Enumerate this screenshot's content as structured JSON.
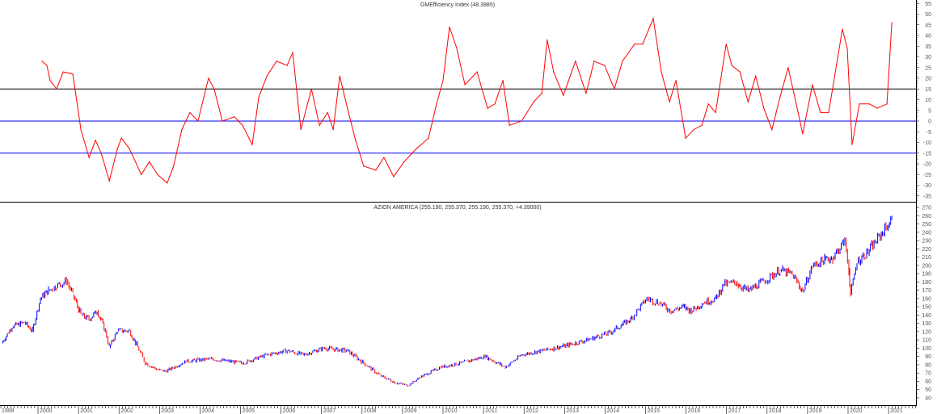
{
  "chart_data": [
    {
      "type": "line",
      "title": "GMEfficiency Index (48.3985)",
      "color": "#ff0000",
      "ylim": [
        -38,
        57
      ],
      "yticks": [
        55,
        50,
        45,
        40,
        35,
        30,
        25,
        20,
        15,
        10,
        5,
        0,
        -5,
        -10,
        -15,
        -20,
        -25,
        -30,
        -35
      ],
      "reference_lines": [
        {
          "value": 15,
          "color": "#000000"
        },
        {
          "value": 0,
          "color": "#0000ff"
        },
        {
          "value": -15,
          "color": "#0000ff"
        }
      ],
      "points": [
        [
          2000.1,
          28
        ],
        [
          2000.22,
          26
        ],
        [
          2000.3,
          19
        ],
        [
          2000.46,
          15
        ],
        [
          2000.62,
          23
        ],
        [
          2000.86,
          22
        ],
        [
          2001.06,
          -4
        ],
        [
          2001.26,
          -17
        ],
        [
          2001.42,
          -9
        ],
        [
          2001.56,
          -15
        ],
        [
          2001.76,
          -28
        ],
        [
          2001.96,
          -13
        ],
        [
          2002.06,
          -8
        ],
        [
          2002.26,
          -13
        ],
        [
          2002.55,
          -25
        ],
        [
          2002.75,
          -19
        ],
        [
          2002.95,
          -25
        ],
        [
          2003.19,
          -29
        ],
        [
          2003.35,
          -21
        ],
        [
          2003.55,
          -4
        ],
        [
          2003.75,
          4
        ],
        [
          2003.95,
          0
        ],
        [
          2004.21,
          20
        ],
        [
          2004.35,
          15
        ],
        [
          2004.55,
          0
        ],
        [
          2004.85,
          2
        ],
        [
          2005.05,
          -2
        ],
        [
          2005.29,
          -11
        ],
        [
          2005.45,
          11
        ],
        [
          2005.65,
          21
        ],
        [
          2005.89,
          28
        ],
        [
          2006.15,
          26
        ],
        [
          2006.29,
          32
        ],
        [
          2006.49,
          -4
        ],
        [
          2006.75,
          15
        ],
        [
          2006.95,
          -2
        ],
        [
          2007.15,
          4
        ],
        [
          2007.29,
          -4
        ],
        [
          2007.45,
          21
        ],
        [
          2007.64,
          6
        ],
        [
          2007.84,
          -9
        ],
        [
          2008.04,
          -21
        ],
        [
          2008.34,
          -23
        ],
        [
          2008.54,
          -17
        ],
        [
          2008.78,
          -26
        ],
        [
          2009.04,
          -19
        ],
        [
          2009.34,
          -13
        ],
        [
          2009.64,
          -8
        ],
        [
          2009.84,
          8
        ],
        [
          2010.0,
          19
        ],
        [
          2010.16,
          44
        ],
        [
          2010.34,
          34
        ],
        [
          2010.54,
          17
        ],
        [
          2010.84,
          23
        ],
        [
          2011.1,
          6
        ],
        [
          2011.28,
          8
        ],
        [
          2011.48,
          19
        ],
        [
          2011.64,
          -2
        ],
        [
          2011.94,
          0
        ],
        [
          2012.24,
          9
        ],
        [
          2012.44,
          13
        ],
        [
          2012.57,
          38
        ],
        [
          2012.73,
          23
        ],
        [
          2012.97,
          12
        ],
        [
          2013.27,
          28
        ],
        [
          2013.53,
          13
        ],
        [
          2013.73,
          28
        ],
        [
          2013.99,
          26
        ],
        [
          2014.23,
          15
        ],
        [
          2014.43,
          28
        ],
        [
          2014.73,
          36
        ],
        [
          2014.93,
          36
        ],
        [
          2015.19,
          48
        ],
        [
          2015.39,
          23
        ],
        [
          2015.59,
          9
        ],
        [
          2015.75,
          19
        ],
        [
          2015.99,
          -8
        ],
        [
          2016.19,
          -4
        ],
        [
          2016.39,
          -2
        ],
        [
          2016.55,
          8
        ],
        [
          2016.73,
          4
        ],
        [
          2016.99,
          36
        ],
        [
          2017.13,
          26
        ],
        [
          2017.33,
          23
        ],
        [
          2017.53,
          9
        ],
        [
          2017.72,
          21
        ],
        [
          2017.92,
          6
        ],
        [
          2018.12,
          -4
        ],
        [
          2018.32,
          11
        ],
        [
          2018.52,
          25
        ],
        [
          2018.72,
          8
        ],
        [
          2018.88,
          -6
        ],
        [
          2019.12,
          17
        ],
        [
          2019.32,
          4
        ],
        [
          2019.52,
          4
        ],
        [
          2019.86,
          43
        ],
        [
          2019.98,
          34
        ],
        [
          2020.1,
          -11
        ],
        [
          2020.28,
          8
        ],
        [
          2020.52,
          8
        ],
        [
          2020.72,
          6
        ],
        [
          2020.96,
          8
        ],
        [
          2021.08,
          46
        ]
      ]
    },
    {
      "type": "bar",
      "title": "AZION AMERICA (255.190, 255.370, 255.190, 255.370, +4.39000)",
      "up_color": "#0000ff",
      "down_color": "#ff0000",
      "ylim": [
        36,
        272
      ],
      "yticks": [
        270,
        260,
        250,
        240,
        230,
        220,
        210,
        200,
        190,
        180,
        170,
        160,
        150,
        140,
        130,
        120,
        110,
        100,
        90,
        80,
        70,
        60,
        50,
        40
      ],
      "points": [
        [
          1999.1,
          106
        ],
        [
          1999.36,
          126
        ],
        [
          1999.66,
          131
        ],
        [
          1999.86,
          121
        ],
        [
          2000.06,
          160
        ],
        [
          2000.26,
          170
        ],
        [
          2000.46,
          175
        ],
        [
          2000.7,
          181
        ],
        [
          2000.86,
          165
        ],
        [
          2001.06,
          140
        ],
        [
          2001.26,
          135
        ],
        [
          2001.46,
          145
        ],
        [
          2001.66,
          121
        ],
        [
          2001.76,
          101
        ],
        [
          2001.96,
          121
        ],
        [
          2002.26,
          121
        ],
        [
          2002.46,
          101
        ],
        [
          2002.65,
          82
        ],
        [
          2002.95,
          74
        ],
        [
          2003.15,
          72
        ],
        [
          2003.65,
          84
        ],
        [
          2004.25,
          87
        ],
        [
          2005.05,
          82
        ],
        [
          2005.65,
          92
        ],
        [
          2006.15,
          97
        ],
        [
          2006.55,
          92
        ],
        [
          2007.05,
          100
        ],
        [
          2007.64,
          97
        ],
        [
          2008.04,
          82
        ],
        [
          2008.44,
          67
        ],
        [
          2008.84,
          58
        ],
        [
          2009.14,
          55
        ],
        [
          2009.44,
          65
        ],
        [
          2009.94,
          77
        ],
        [
          2010.44,
          82
        ],
        [
          2011.04,
          90
        ],
        [
          2011.54,
          77
        ],
        [
          2011.94,
          92
        ],
        [
          2012.44,
          97
        ],
        [
          2013.03,
          103
        ],
        [
          2013.63,
          111
        ],
        [
          2014.13,
          119
        ],
        [
          2014.63,
          135
        ],
        [
          2015.03,
          160
        ],
        [
          2015.33,
          155
        ],
        [
          2015.63,
          145
        ],
        [
          2015.93,
          150
        ],
        [
          2016.13,
          145
        ],
        [
          2016.43,
          155
        ],
        [
          2016.73,
          160
        ],
        [
          2016.93,
          177
        ],
        [
          2017.23,
          179
        ],
        [
          2017.53,
          169
        ],
        [
          2017.92,
          181
        ],
        [
          2018.32,
          194
        ],
        [
          2018.62,
          189
        ],
        [
          2018.88,
          169
        ],
        [
          2019.12,
          199
        ],
        [
          2019.42,
          207
        ],
        [
          2019.62,
          209
        ],
        [
          2019.92,
          230
        ],
        [
          2020.02,
          194
        ],
        [
          2020.06,
          165
        ],
        [
          2020.22,
          204
        ],
        [
          2020.52,
          218
        ],
        [
          2020.82,
          238
        ],
        [
          2021.08,
          255
        ]
      ]
    }
  ],
  "x_axis": {
    "xlim": [
      1999.06,
      2021.7
    ],
    "labels": [
      "1999",
      "2000",
      "2001",
      "2002",
      "2003",
      "2004",
      "2005",
      "2006",
      "2007",
      "2008",
      "2009",
      "2010",
      "2011",
      "2012",
      "2013",
      "2014",
      "2015",
      "2016",
      "2017",
      "2018",
      "2019",
      "2020",
      "2021"
    ]
  }
}
